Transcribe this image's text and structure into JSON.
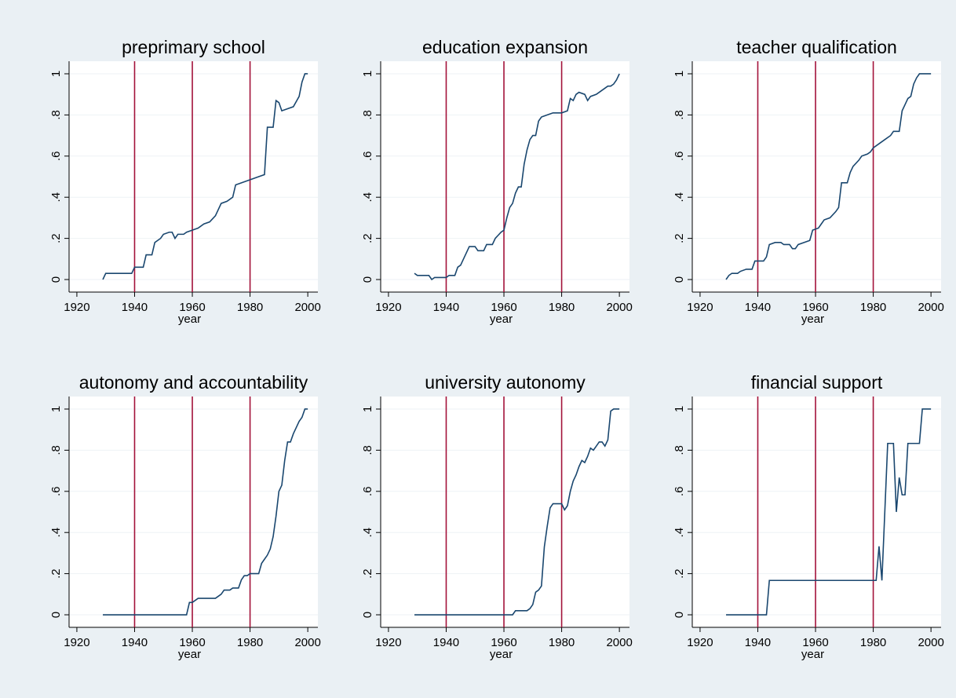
{
  "chart_data": [
    {
      "type": "line",
      "title": "preprimary school",
      "xlabel": "year",
      "color": "#1a476f",
      "vline_color": "#a3123a",
      "grid": true,
      "x": [
        1929,
        1930,
        1939,
        1940,
        1943,
        1944,
        1946,
        1947,
        1949,
        1950,
        1952,
        1953,
        1954,
        1955,
        1957,
        1958,
        1960,
        1962,
        1964,
        1966,
        1968,
        1970,
        1972,
        1974,
        1975,
        1977,
        1979,
        1981,
        1983,
        1985,
        1986,
        1988,
        1989,
        1990,
        1991,
        1993,
        1995,
        1997,
        1998,
        1999,
        2000
      ],
      "values": [
        0,
        0.03,
        0.03,
        0.06,
        0.06,
        0.12,
        0.12,
        0.18,
        0.2,
        0.22,
        0.23,
        0.23,
        0.2,
        0.22,
        0.22,
        0.23,
        0.24,
        0.25,
        0.27,
        0.28,
        0.31,
        0.37,
        0.38,
        0.4,
        0.46,
        0.47,
        0.48,
        0.49,
        0.5,
        0.51,
        0.74,
        0.74,
        0.87,
        0.86,
        0.82,
        0.83,
        0.84,
        0.89,
        0.96,
        1,
        1
      ],
      "vlines": [
        1940,
        1960,
        1980
      ],
      "xlim": [
        1917.3,
        2003.5
      ],
      "xticks": [
        1920,
        1940,
        1960,
        1980,
        2000
      ],
      "ylim": [
        -0.061,
        1.061
      ],
      "yticks": [
        0,
        {
          "value": 0.2,
          "label": ".2"
        },
        {
          "value": 0.4,
          "label": ".4"
        },
        {
          "value": 0.6,
          "label": ".6"
        },
        {
          "value": 0.8,
          "label": ".8"
        },
        1
      ]
    },
    {
      "type": "line",
      "title": "education expansion",
      "xlabel": "year",
      "color": "#1a476f",
      "vline_color": "#a3123a",
      "grid": true,
      "x": [
        1929,
        1930,
        1934,
        1935,
        1936,
        1940,
        1941,
        1943,
        1944,
        1945,
        1946,
        1947,
        1948,
        1950,
        1951,
        1953,
        1954,
        1956,
        1957,
        1959,
        1960,
        1961,
        1962,
        1963,
        1964,
        1965,
        1966,
        1967,
        1968,
        1969,
        1970,
        1971,
        1972,
        1973,
        1975,
        1977,
        1980,
        1982,
        1983,
        1984,
        1985,
        1986,
        1988,
        1989,
        1990,
        1992,
        1993,
        1994,
        1996,
        1997,
        1998,
        1999,
        2000
      ],
      "values": [
        0.03,
        0.02,
        0.02,
        0,
        0.01,
        0.01,
        0.02,
        0.02,
        0.06,
        0.07,
        0.1,
        0.13,
        0.16,
        0.16,
        0.14,
        0.14,
        0.17,
        0.17,
        0.2,
        0.23,
        0.24,
        0.3,
        0.35,
        0.37,
        0.42,
        0.45,
        0.45,
        0.56,
        0.63,
        0.68,
        0.7,
        0.7,
        0.77,
        0.79,
        0.8,
        0.81,
        0.81,
        0.82,
        0.88,
        0.87,
        0.9,
        0.91,
        0.9,
        0.87,
        0.89,
        0.9,
        0.91,
        0.92,
        0.94,
        0.94,
        0.95,
        0.97,
        1
      ],
      "vlines": [
        1940,
        1960,
        1980
      ],
      "xlim": [
        1917.3,
        2003.5
      ],
      "xticks": [
        1920,
        1940,
        1960,
        1980,
        2000
      ],
      "ylim": [
        -0.061,
        1.061
      ],
      "yticks": [
        0,
        {
          "value": 0.2,
          "label": ".2"
        },
        {
          "value": 0.4,
          "label": ".4"
        },
        {
          "value": 0.6,
          "label": ".6"
        },
        {
          "value": 0.8,
          "label": ".8"
        },
        1
      ]
    },
    {
      "type": "line",
      "title": "teacher qualification",
      "xlabel": "year",
      "color": "#1a476f",
      "vline_color": "#a3123a",
      "grid": true,
      "x": [
        1929,
        1930,
        1931,
        1933,
        1934,
        1936,
        1938,
        1939,
        1942,
        1943,
        1944,
        1946,
        1948,
        1949,
        1951,
        1952,
        1953,
        1954,
        1956,
        1958,
        1959,
        1961,
        1962,
        1963,
        1965,
        1967,
        1968,
        1969,
        1971,
        1972,
        1973,
        1975,
        1976,
        1978,
        1979,
        1980,
        1982,
        1984,
        1986,
        1987,
        1989,
        1990,
        1991,
        1992,
        1993,
        1994,
        1995,
        1996,
        2000
      ],
      "values": [
        0,
        0.02,
        0.03,
        0.03,
        0.04,
        0.05,
        0.05,
        0.09,
        0.09,
        0.11,
        0.17,
        0.18,
        0.18,
        0.17,
        0.17,
        0.15,
        0.15,
        0.17,
        0.18,
        0.19,
        0.24,
        0.25,
        0.27,
        0.29,
        0.3,
        0.33,
        0.35,
        0.47,
        0.47,
        0.52,
        0.55,
        0.58,
        0.6,
        0.61,
        0.62,
        0.64,
        0.66,
        0.68,
        0.7,
        0.72,
        0.72,
        0.82,
        0.85,
        0.88,
        0.89,
        0.95,
        0.98,
        1,
        1
      ],
      "vlines": [
        1940,
        1960,
        1980
      ],
      "xlim": [
        1917.3,
        2003.5
      ],
      "xticks": [
        1920,
        1940,
        1960,
        1980,
        2000
      ],
      "ylim": [
        -0.061,
        1.061
      ],
      "yticks": [
        0,
        {
          "value": 0.2,
          "label": ".2"
        },
        {
          "value": 0.4,
          "label": ".4"
        },
        {
          "value": 0.6,
          "label": ".6"
        },
        {
          "value": 0.8,
          "label": ".8"
        },
        1
      ]
    },
    {
      "type": "line",
      "title": "autonomy and accountability",
      "xlabel": "year",
      "color": "#1a476f",
      "vline_color": "#a3123a",
      "grid": true,
      "x": [
        1929,
        1958,
        1959,
        1960,
        1961,
        1962,
        1968,
        1969,
        1970,
        1971,
        1973,
        1974,
        1976,
        1977,
        1978,
        1979,
        1980,
        1983,
        1984,
        1985,
        1986,
        1987,
        1988,
        1989,
        1990,
        1991,
        1992,
        1993,
        1994,
        1995,
        1996,
        1997,
        1998,
        1999,
        2000
      ],
      "values": [
        0,
        0,
        0.06,
        0.06,
        0.07,
        0.08,
        0.08,
        0.09,
        0.1,
        0.12,
        0.12,
        0.13,
        0.13,
        0.17,
        0.19,
        0.19,
        0.2,
        0.2,
        0.25,
        0.27,
        0.29,
        0.32,
        0.38,
        0.48,
        0.6,
        0.63,
        0.75,
        0.84,
        0.84,
        0.88,
        0.91,
        0.94,
        0.96,
        1,
        1
      ],
      "vlines": [
        1940,
        1960,
        1980
      ],
      "xlim": [
        1917.3,
        2003.5
      ],
      "xticks": [
        1920,
        1940,
        1960,
        1980,
        2000
      ],
      "ylim": [
        -0.061,
        1.061
      ],
      "yticks": [
        0,
        {
          "value": 0.2,
          "label": ".2"
        },
        {
          "value": 0.4,
          "label": ".4"
        },
        {
          "value": 0.6,
          "label": ".6"
        },
        {
          "value": 0.8,
          "label": ".8"
        },
        1
      ]
    },
    {
      "type": "line",
      "title": "university autonomy",
      "xlabel": "year",
      "color": "#1a476f",
      "vline_color": "#a3123a",
      "grid": true,
      "x": [
        1929,
        1963,
        1964,
        1968,
        1969,
        1970,
        1971,
        1972,
        1973,
        1974,
        1975,
        1976,
        1977,
        1980,
        1981,
        1982,
        1983,
        1984,
        1985,
        1986,
        1987,
        1988,
        1989,
        1990,
        1991,
        1992,
        1993,
        1994,
        1995,
        1996,
        1997,
        1998,
        2000
      ],
      "values": [
        0,
        0,
        0.02,
        0.02,
        0.03,
        0.05,
        0.11,
        0.12,
        0.14,
        0.33,
        0.43,
        0.52,
        0.54,
        0.54,
        0.51,
        0.53,
        0.6,
        0.65,
        0.68,
        0.72,
        0.75,
        0.74,
        0.77,
        0.81,
        0.8,
        0.82,
        0.84,
        0.84,
        0.82,
        0.85,
        0.99,
        1,
        1
      ],
      "vlines": [
        1940,
        1960,
        1980
      ],
      "xlim": [
        1917.3,
        2003.5
      ],
      "xticks": [
        1920,
        1940,
        1960,
        1980,
        2000
      ],
      "ylim": [
        -0.061,
        1.061
      ],
      "yticks": [
        0,
        {
          "value": 0.2,
          "label": ".2"
        },
        {
          "value": 0.4,
          "label": ".4"
        },
        {
          "value": 0.6,
          "label": ".6"
        },
        {
          "value": 0.8,
          "label": ".8"
        },
        1
      ]
    },
    {
      "type": "line",
      "title": "financial support",
      "xlabel": "year",
      "color": "#1a476f",
      "vline_color": "#a3123a",
      "grid": true,
      "x": [
        1929,
        1943,
        1944,
        1981,
        1982,
        1983,
        1984,
        1985,
        1987,
        1988,
        1989,
        1990,
        1991,
        1992,
        1996,
        1997,
        2000
      ],
      "values": [
        0,
        0,
        0.167,
        0.167,
        0.333,
        0.167,
        0.5,
        0.833,
        0.833,
        0.5,
        0.667,
        0.583,
        0.583,
        0.833,
        0.833,
        1,
        1
      ],
      "vlines": [
        1940,
        1960,
        1980
      ],
      "xlim": [
        1917.3,
        2003.5
      ],
      "xticks": [
        1920,
        1940,
        1960,
        1980,
        2000
      ],
      "ylim": [
        -0.061,
        1.061
      ],
      "yticks": [
        0,
        {
          "value": 0.2,
          "label": ".2"
        },
        {
          "value": 0.4,
          "label": ".4"
        },
        {
          "value": 0.6,
          "label": ".6"
        },
        {
          "value": 0.8,
          "label": ".8"
        },
        1
      ]
    }
  ]
}
